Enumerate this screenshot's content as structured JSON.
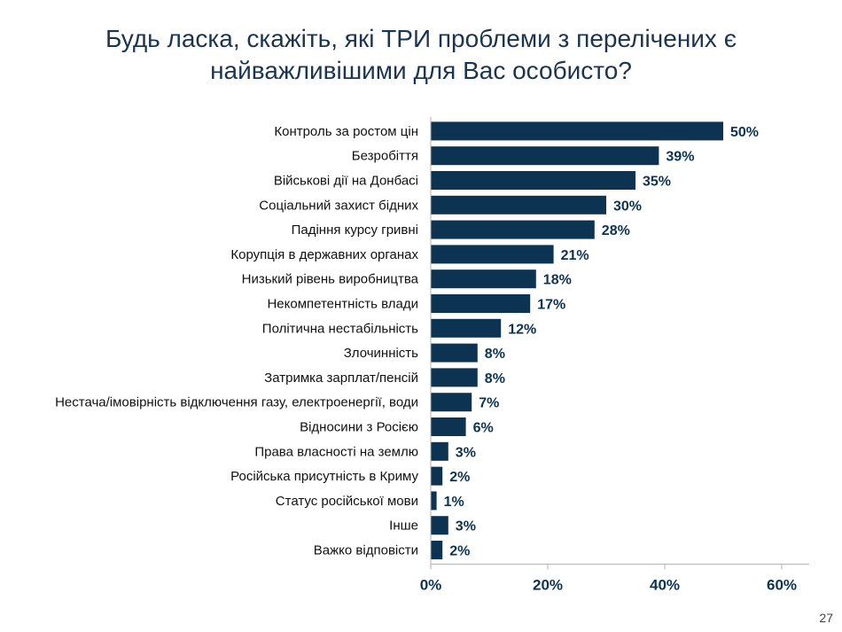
{
  "slide": {
    "title": "Будь ласка, скажіть, які ТРИ проблеми з перелічених є найважливішими для Вас особисто?",
    "page_number": "27"
  },
  "colors": {
    "bar": "#0d3352",
    "title": "#1b3550",
    "axis_label": "#0d3352"
  },
  "chart_data": {
    "type": "bar",
    "orientation": "horizontal",
    "categories": [
      "Контроль за ростом цін",
      "Безробіття",
      "Військові дії на Донбасі",
      "Соціальний захист бідних",
      "Падіння курсу гривні",
      "Корупція в державних органах",
      "Низький рівень виробництва",
      "Некомпетентність влади",
      "Політична нестабільність",
      "Злочинність",
      "Затримка зарплат/пенсій",
      "Нестача/імовірність відключення газу, електроенергії, води",
      "Відносини з Росією",
      "Права власності на землю",
      "Російська присутність в Криму",
      "Статус російської мови",
      "Інше",
      "Важко відповісти"
    ],
    "values": [
      50,
      39,
      35,
      30,
      28,
      21,
      18,
      17,
      12,
      8,
      8,
      7,
      6,
      3,
      2,
      1,
      3,
      2
    ],
    "value_labels": [
      "50%",
      "39%",
      "35%",
      "30%",
      "28%",
      "21%",
      "18%",
      "17%",
      "12%",
      "8%",
      "8%",
      "7%",
      "6%",
      "3%",
      "2%",
      "1%",
      "3%",
      "2%"
    ],
    "xlim": [
      0,
      65
    ],
    "xticks": [
      0,
      20,
      40,
      60
    ],
    "xtick_labels": [
      "0%",
      "20%",
      "40%",
      "60%"
    ],
    "grid": false,
    "legend": "none"
  }
}
